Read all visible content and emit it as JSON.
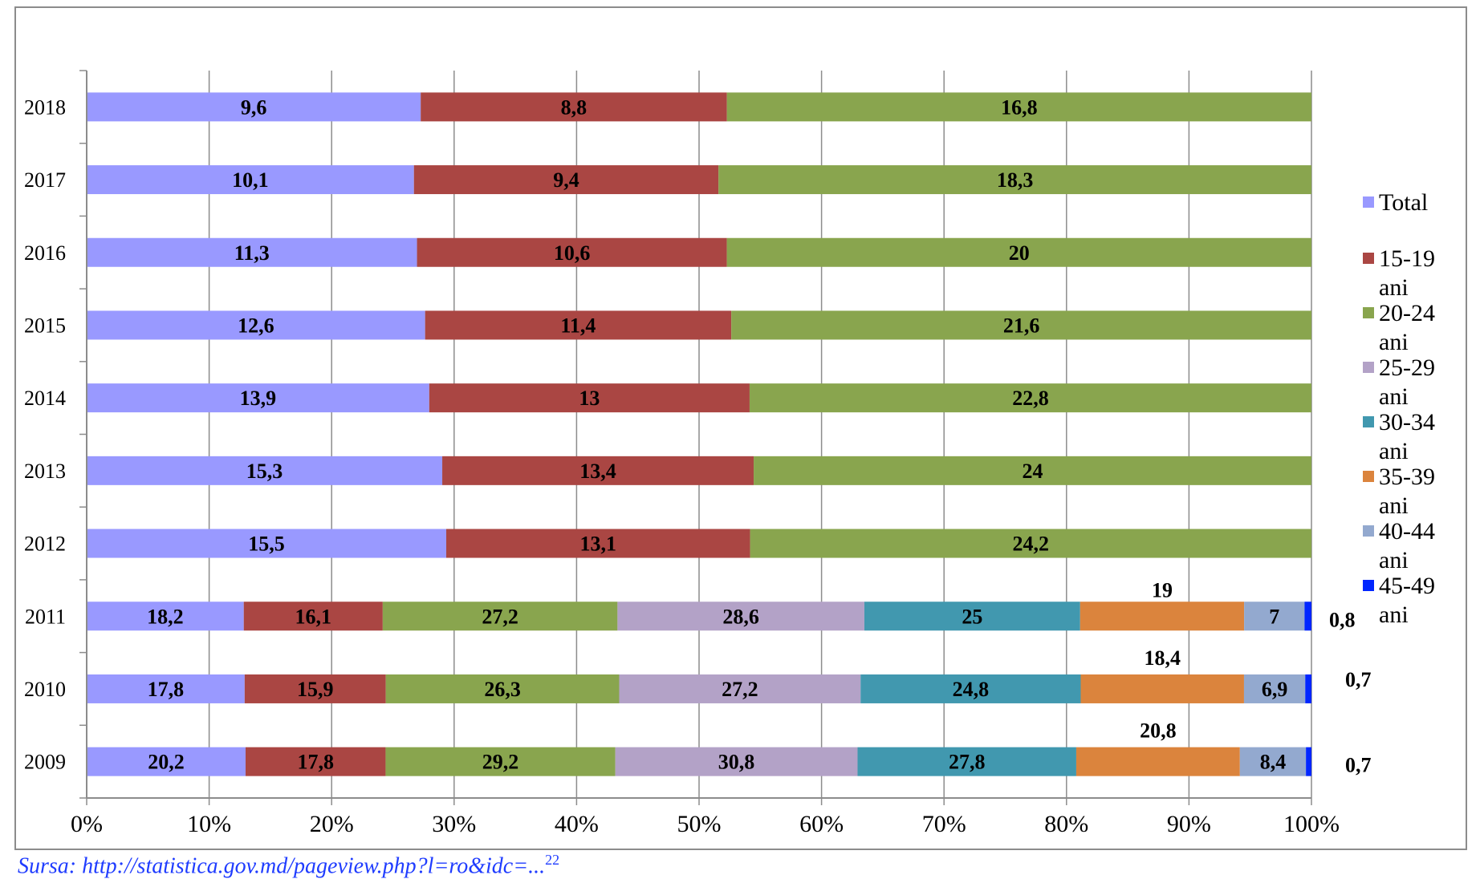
{
  "chart_data": {
    "type": "bar",
    "orientation": "horizontal",
    "stacking": "percent",
    "categories": [
      "2018",
      "2017",
      "2016",
      "2015",
      "2014",
      "2013",
      "2012",
      "2011",
      "2010",
      "2009"
    ],
    "series": [
      {
        "name": "Total",
        "color": "#9999ff",
        "values": [
          9.6,
          10.1,
          11.3,
          12.6,
          13.9,
          15.3,
          15.5,
          18.2,
          17.8,
          20.2
        ],
        "labels": [
          "9,6",
          "10,1",
          "11,3",
          "12,6",
          "13,9",
          "15,3",
          "15,5",
          "18,2",
          "17,8",
          "20,2"
        ]
      },
      {
        "name": "15-19 ani",
        "color": "#aa4643",
        "values": [
          8.8,
          9.4,
          10.6,
          11.4,
          13,
          13.4,
          13.1,
          16.1,
          15.9,
          17.8
        ],
        "labels": [
          "8,8",
          "9,4",
          "10,6",
          "11,4",
          "13",
          "13,4",
          "13,1",
          "16,1",
          "15,9",
          "17,8"
        ]
      },
      {
        "name": "20-24 ani",
        "color": "#89a54e",
        "values": [
          16.8,
          18.3,
          20,
          21.6,
          22.8,
          24,
          24.2,
          27.2,
          26.3,
          29.2
        ],
        "labels": [
          "16,8",
          "18,3",
          "20",
          "21,6",
          "22,8",
          "24",
          "24,2",
          "27,2",
          "26,3",
          "29,2"
        ]
      },
      {
        "name": "25-29 ani",
        "color": "#b3a2c7",
        "values": [
          null,
          null,
          null,
          null,
          null,
          null,
          null,
          28.6,
          27.2,
          30.8
        ],
        "labels": [
          "",
          "",
          "",
          "",
          "",
          "",
          "",
          "28,6",
          "27,2",
          "30,8"
        ]
      },
      {
        "name": "30-34 ani",
        "color": "#4198af",
        "values": [
          null,
          null,
          null,
          null,
          null,
          null,
          null,
          25,
          24.8,
          27.8
        ],
        "labels": [
          "",
          "",
          "",
          "",
          "",
          "",
          "",
          "25",
          "24,8",
          "27,8"
        ]
      },
      {
        "name": "35-39 ani",
        "color": "#db843d",
        "values": [
          null,
          null,
          null,
          null,
          null,
          null,
          null,
          19,
          18.4,
          20.8
        ],
        "labels": [
          "",
          "",
          "",
          "",
          "",
          "",
          "",
          "19",
          "18,4",
          "20,8"
        ]
      },
      {
        "name": "40-44 ani",
        "color": "#93a9cf",
        "values": [
          null,
          null,
          null,
          null,
          null,
          null,
          null,
          7,
          6.9,
          8.4
        ],
        "labels": [
          "",
          "",
          "",
          "",
          "",
          "",
          "",
          "7",
          "6,9",
          "8,4"
        ]
      },
      {
        "name": "45-49 ani",
        "color": "#0026ff",
        "values": [
          null,
          null,
          null,
          null,
          null,
          null,
          null,
          0.8,
          0.7,
          0.7
        ],
        "labels": [
          "",
          "",
          "",
          "",
          "",
          "",
          "",
          "0,8",
          "0,7",
          "0,7"
        ]
      }
    ],
    "xlim": [
      0,
      100
    ],
    "x_ticks": [
      "0%",
      "10%",
      "20%",
      "30%",
      "40%",
      "50%",
      "60%",
      "70%",
      "80%",
      "90%",
      "100%"
    ],
    "grid": true,
    "legend_position": "right",
    "title": "",
    "xlabel": "",
    "ylabel": ""
  },
  "source_note": "Sursa: http://statistica.gov.md/pageview.php?l=ro&idc=...",
  "source_footnote": "22"
}
